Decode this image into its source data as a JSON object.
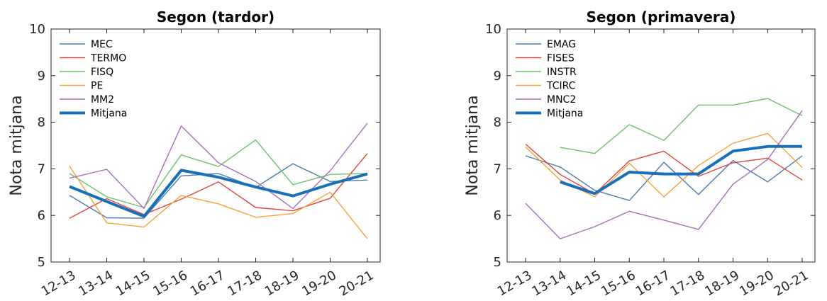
{
  "chart_data": [
    {
      "type": "line",
      "title": "Segon (tardor)",
      "xlabel": "",
      "ylabel": "Nota mitjana",
      "categories": [
        "12-13",
        "13-14",
        "14-15",
        "15-16",
        "16-17",
        "17-18",
        "18-19",
        "19-20",
        "20-21"
      ],
      "yticks": [
        "5",
        "6",
        "7",
        "8",
        "9",
        "10"
      ],
      "ylim": [
        5,
        10
      ],
      "grid": false,
      "legend_position": "top-left",
      "series": [
        {
          "name": "MEC",
          "color": "#4a7bb0",
          "values": [
            6.43,
            5.95,
            5.94,
            6.85,
            6.9,
            6.6,
            7.11,
            6.73,
            6.76
          ]
        },
        {
          "name": "TERMO",
          "color": "#e1443d",
          "values": [
            5.94,
            6.36,
            6.02,
            6.35,
            6.72,
            6.17,
            6.1,
            6.37,
            7.33
          ]
        },
        {
          "name": "FISQ",
          "color": "#6cc26a",
          "values": [
            6.9,
            6.4,
            6.17,
            7.3,
            7.05,
            7.62,
            6.66,
            6.88,
            6.9
          ]
        },
        {
          "name": "PE",
          "color": "#f4a33a",
          "values": [
            7.06,
            5.84,
            5.75,
            6.43,
            6.25,
            5.96,
            6.04,
            6.5,
            5.5
          ]
        },
        {
          "name": "MM2",
          "color": "#a66fbd",
          "values": [
            6.8,
            6.99,
            6.15,
            7.92,
            7.13,
            6.73,
            6.15,
            6.96,
            7.98
          ]
        },
        {
          "name": "Mitjana",
          "color": "#1770b8",
          "bold": true,
          "values": [
            6.62,
            6.3,
            5.98,
            6.97,
            6.82,
            6.61,
            6.42,
            6.67,
            6.89
          ]
        }
      ]
    },
    {
      "type": "line",
      "title": "Segon (primavera)",
      "xlabel": "",
      "ylabel": "Nota mitjana",
      "categories": [
        "12-13",
        "13-14",
        "14-15",
        "15-16",
        "16-17",
        "17-18",
        "18-19",
        "19-20",
        "20-21"
      ],
      "yticks": [
        "5",
        "6",
        "7",
        "8",
        "9",
        "10"
      ],
      "ylim": [
        5,
        10
      ],
      "grid": false,
      "legend_position": "top-left",
      "series": [
        {
          "name": "EMAG",
          "color": "#4a7bb0",
          "values": [
            7.28,
            7.04,
            6.54,
            6.32,
            7.14,
            6.45,
            7.18,
            6.72,
            7.28
          ]
        },
        {
          "name": "FISES",
          "color": "#e1443d",
          "values": [
            7.53,
            6.88,
            6.46,
            7.17,
            7.38,
            6.84,
            7.13,
            7.23,
            6.76
          ]
        },
        {
          "name": "INSTR",
          "color": "#6cc26a",
          "values": [
            null,
            7.46,
            7.33,
            7.95,
            7.61,
            8.37,
            8.37,
            8.51,
            8.14
          ]
        },
        {
          "name": "TCIRC",
          "color": "#f4a33a",
          "values": [
            7.47,
            6.76,
            6.4,
            7.12,
            6.4,
            7.07,
            7.55,
            7.76,
            7.03
          ]
        },
        {
          "name": "MNC2",
          "color": "#a66fbd",
          "values": [
            6.26,
            5.5,
            5.76,
            6.09,
            5.9,
            5.7,
            6.67,
            7.2,
            8.25
          ]
        },
        {
          "name": "Mitjana",
          "color": "#1770b8",
          "bold": true,
          "values": [
            null,
            6.72,
            6.47,
            6.93,
            6.89,
            6.89,
            7.38,
            7.48,
            7.48
          ]
        }
      ]
    }
  ]
}
